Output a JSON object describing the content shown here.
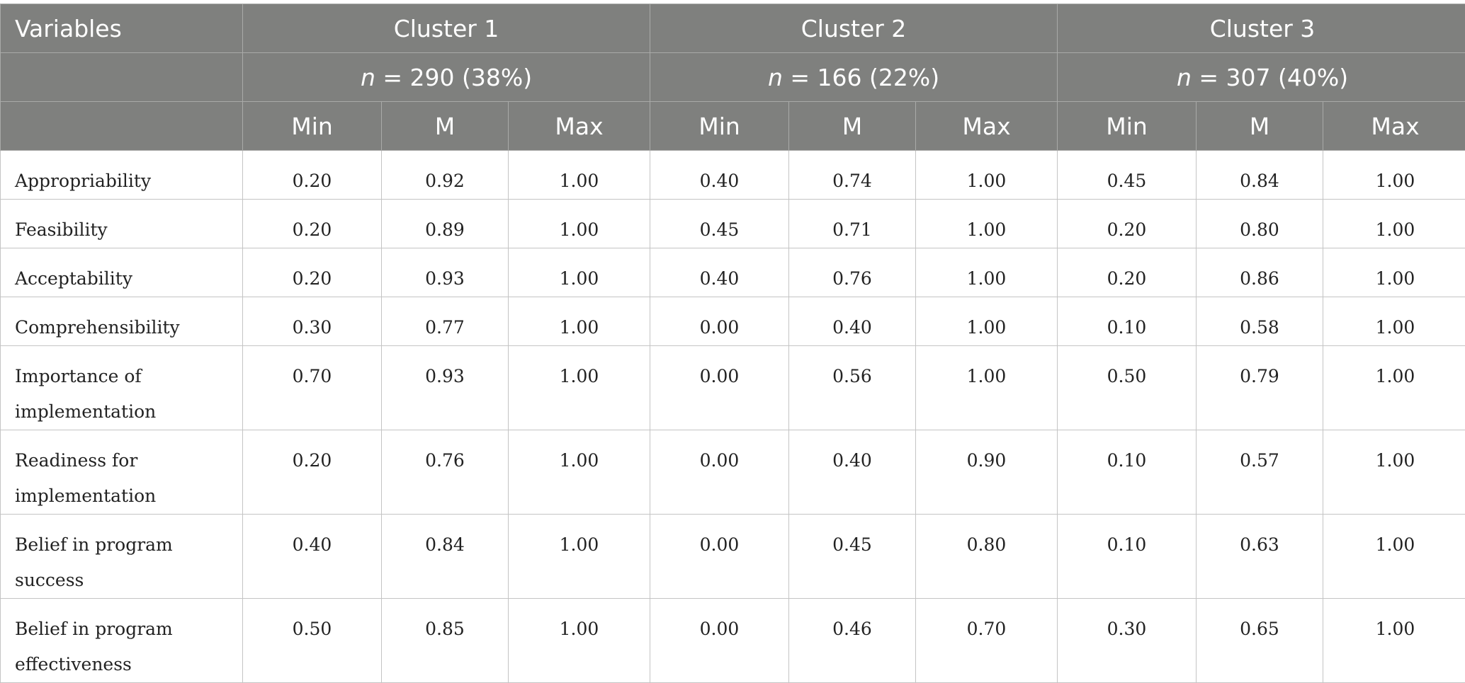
{
  "table": {
    "header": {
      "variables_label": "Variables",
      "clusters": [
        {
          "label": "Cluster 1",
          "n_prefix": "n",
          "n_value": " = 290 (38%)"
        },
        {
          "label": "Cluster 2",
          "n_prefix": "n",
          "n_value": " = 166 (22%)"
        },
        {
          "label": "Cluster 3",
          "n_prefix": "n",
          "n_value": " = 307 (40%)"
        }
      ],
      "subcolumns": [
        "Min",
        "M",
        "Max"
      ]
    },
    "rows": [
      {
        "variable": "Appropriability",
        "values": [
          "0.20",
          "0.92",
          "1.00",
          "0.40",
          "0.74",
          "1.00",
          "0.45",
          "0.84",
          "1.00"
        ]
      },
      {
        "variable": "Feasibility",
        "values": [
          "0.20",
          "0.89",
          "1.00",
          "0.45",
          "0.71",
          "1.00",
          "0.20",
          "0.80",
          "1.00"
        ]
      },
      {
        "variable": "Acceptability",
        "values": [
          "0.20",
          "0.93",
          "1.00",
          "0.40",
          "0.76",
          "1.00",
          "0.20",
          "0.86",
          "1.00"
        ]
      },
      {
        "variable": "Comprehensibility",
        "values": [
          "0.30",
          "0.77",
          "1.00",
          "0.00",
          "0.40",
          "1.00",
          "0.10",
          "0.58",
          "1.00"
        ]
      },
      {
        "variable": "Importance of implementation",
        "values": [
          "0.70",
          "0.93",
          "1.00",
          "0.00",
          "0.56",
          "1.00",
          "0.50",
          "0.79",
          "1.00"
        ]
      },
      {
        "variable": "Readiness for implementation",
        "values": [
          "0.20",
          "0.76",
          "1.00",
          "0.00",
          "0.40",
          "0.90",
          "0.10",
          "0.57",
          "1.00"
        ]
      },
      {
        "variable": "Belief in program success",
        "values": [
          "0.40",
          "0.84",
          "1.00",
          "0.00",
          "0.45",
          "0.80",
          "0.10",
          "0.63",
          "1.00"
        ]
      },
      {
        "variable": "Belief in program effectiveness",
        "values": [
          "0.50",
          "0.85",
          "1.00",
          "0.00",
          "0.46",
          "0.70",
          "0.30",
          "0.65",
          "1.00"
        ]
      }
    ]
  }
}
